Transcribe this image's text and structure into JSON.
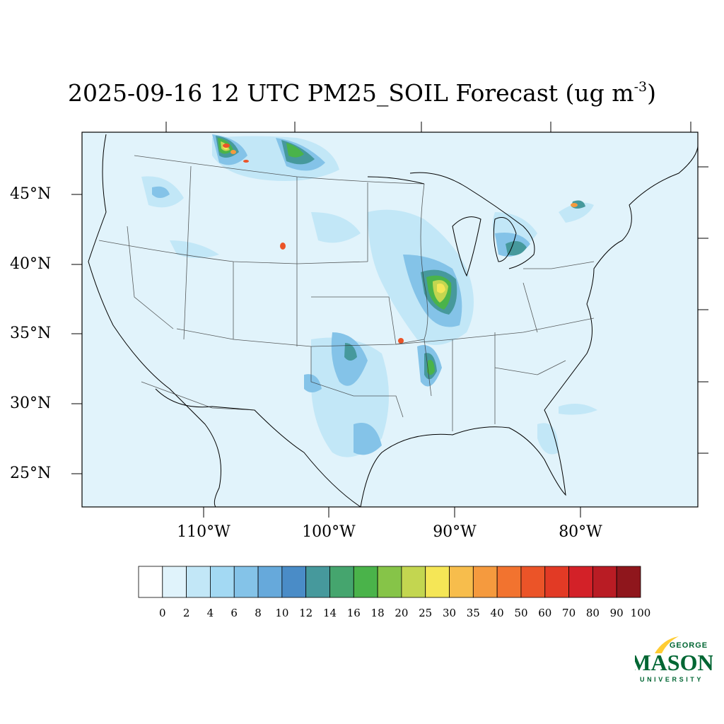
{
  "title": {
    "main": "2025-09-16 12 UTC PM25_SOIL Forecast (ug m",
    "sup": "-3",
    "close": ")"
  },
  "lat_labels": [
    "45°N",
    "40°N",
    "35°N",
    "30°N",
    "25°N"
  ],
  "lon_labels": [
    "110°W",
    "100°W",
    "90°W",
    "80°W"
  ],
  "colorbar": {
    "labels": [
      "0",
      "2",
      "4",
      "6",
      "8",
      "10",
      "12",
      "14",
      "16",
      "18",
      "20",
      "25",
      "30",
      "35",
      "40",
      "50",
      "60",
      "70",
      "80",
      "90",
      "100"
    ],
    "colors": [
      "#ffffff",
      "#e0f3fb",
      "#c2e7f7",
      "#a3d9f3",
      "#84c3e8",
      "#66a9db",
      "#4a8cc7",
      "#46999c",
      "#45a56e",
      "#4ab34a",
      "#86c448",
      "#c3d650",
      "#f5e656",
      "#f7bd4c",
      "#f59a3e",
      "#f2732f",
      "#eb5428",
      "#e23a25",
      "#d32128",
      "#b91c24",
      "#8f161c"
    ]
  },
  "map": {
    "background": "#e1f3fb",
    "border": "#000000"
  },
  "logo": {
    "line1": "GEORGE",
    "line2": "MASON",
    "line3": "UNIVERSITY",
    "green": "#006633",
    "gold": "#ffcc33"
  }
}
